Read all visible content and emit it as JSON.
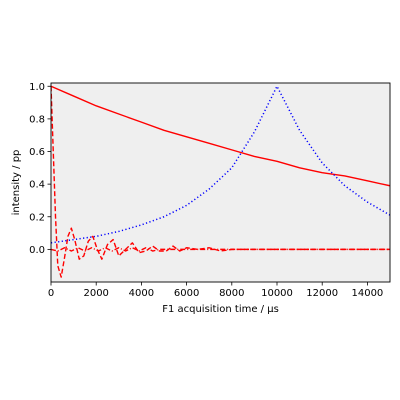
{
  "chart_data": {
    "type": "line",
    "title": "",
    "xlabel": "F1 acquisition time / µs",
    "ylabel": "intensity / pp",
    "xlim": [
      0,
      15000
    ],
    "ylim": [
      -0.2,
      1.02
    ],
    "xticks": [
      0,
      2000,
      4000,
      6000,
      8000,
      10000,
      12000,
      14000
    ],
    "yticks": [
      0.0,
      0.2,
      0.4,
      0.6,
      0.8,
      1.0
    ],
    "xtick_labels": [
      "0",
      "2000",
      "4000",
      "6000",
      "8000",
      "10000",
      "12000",
      "14000"
    ],
    "ytick_labels": [
      "0.0",
      "0.2",
      "0.4",
      "0.6",
      "0.8",
      "1.0"
    ],
    "grid": false,
    "plot_background": "#efefef",
    "series": [
      {
        "color": "#ff0000",
        "style": "solid",
        "x": [
          0,
          1000,
          2000,
          3000,
          4000,
          5000,
          6000,
          7000,
          8000,
          9000,
          10000,
          11000,
          12000,
          13000,
          14000,
          15000
        ],
        "y": [
          1.0,
          0.94,
          0.88,
          0.83,
          0.78,
          0.73,
          0.69,
          0.65,
          0.61,
          0.57,
          0.54,
          0.5,
          0.47,
          0.45,
          0.42,
          0.39
        ]
      },
      {
        "color": "#0000ff",
        "style": "dotted",
        "x": [
          0,
          1000,
          2000,
          3000,
          4000,
          5000,
          6000,
          7000,
          8000,
          9000,
          10000,
          11000,
          12000,
          13000,
          14000,
          15000
        ],
        "y": [
          0.04,
          0.06,
          0.08,
          0.11,
          0.15,
          0.2,
          0.27,
          0.37,
          0.5,
          0.72,
          1.0,
          0.73,
          0.53,
          0.39,
          0.29,
          0.21
        ]
      },
      {
        "color": "#ff0000",
        "style": "dashed",
        "x": [
          0,
          100,
          200,
          300,
          450,
          600,
          750,
          900,
          1050,
          1250,
          1450,
          1650,
          1850,
          2050,
          2250,
          2500,
          2750,
          3000,
          3300,
          3600,
          3900,
          4200,
          4500,
          4800,
          5100,
          5400,
          5700,
          6000,
          6500,
          7000,
          7500,
          8000,
          8500,
          9000,
          9500,
          10000,
          11000,
          12000,
          13000,
          14000,
          15000
        ],
        "y": [
          1.0,
          0.6,
          0.2,
          -0.1,
          -0.17,
          -0.05,
          0.08,
          0.13,
          0.06,
          -0.06,
          -0.04,
          0.05,
          0.08,
          0.0,
          -0.06,
          0.03,
          0.06,
          -0.04,
          0.0,
          0.04,
          -0.02,
          -0.01,
          0.02,
          -0.01,
          -0.01,
          0.02,
          -0.01,
          0.01,
          0.0,
          0.01,
          -0.01,
          0.0,
          0.0,
          0.0,
          0.0,
          0.0,
          0.0,
          0.0,
          0.0,
          0.0,
          0.0
        ]
      },
      {
        "color": "#ff0000",
        "style": "dashdot",
        "x": [
          0,
          300,
          600,
          900,
          1200,
          1500,
          1800,
          2100,
          2400,
          2700,
          3000,
          3300,
          3600,
          3900,
          4200,
          4500,
          4800,
          5100,
          5400,
          5700,
          6000,
          7000,
          8000,
          9000,
          10000,
          11000,
          12000,
          13000,
          14000,
          15000
        ],
        "y": [
          0.0,
          -0.01,
          0.01,
          -0.01,
          0.01,
          -0.01,
          0.01,
          -0.01,
          0.01,
          -0.01,
          0.01,
          -0.01,
          0.01,
          -0.01,
          0.01,
          -0.01,
          0.0,
          0.0,
          0.0,
          0.0,
          0.0,
          0.0,
          0.0,
          0.0,
          0.0,
          0.0,
          0.0,
          0.0,
          0.0,
          0.0
        ]
      }
    ]
  }
}
